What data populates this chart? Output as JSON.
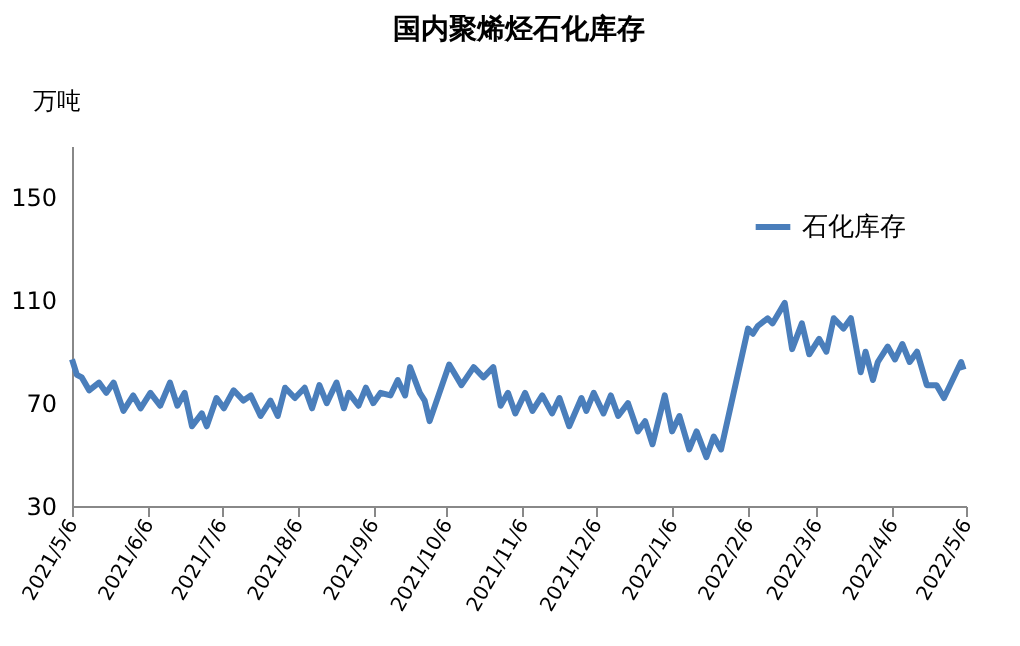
{
  "chart_data": {
    "type": "line",
    "title": "国内聚烯烃石化库存",
    "ylabel": "万吨",
    "xlim": [
      "2021-05-06",
      "2022-05-06"
    ],
    "ylim": [
      30,
      170
    ],
    "yticks": [
      30,
      70,
      110,
      150
    ],
    "xticks": [
      {
        "value": "2021-05-06",
        "label": "2021/5/6"
      },
      {
        "value": "2021-06-06",
        "label": "2021/6/6"
      },
      {
        "value": "2021-07-06",
        "label": "2021/7/6"
      },
      {
        "value": "2021-08-06",
        "label": "2021/8/6"
      },
      {
        "value": "2021-09-06",
        "label": "2021/9/6"
      },
      {
        "value": "2021-10-06",
        "label": "2021/10/6"
      },
      {
        "value": "2021-11-06",
        "label": "2021/11/6"
      },
      {
        "value": "2021-12-06",
        "label": "2021/12/6"
      },
      {
        "value": "2022-01-06",
        "label": "2022/1/6"
      },
      {
        "value": "2022-02-06",
        "label": "2022/2/6"
      },
      {
        "value": "2022-03-06",
        "label": "2022/3/6"
      },
      {
        "value": "2022-04-06",
        "label": "2022/4/6"
      },
      {
        "value": "2022-05-06",
        "label": "2022/5/6"
      }
    ],
    "grid": false,
    "legend": "top right",
    "marker": "none",
    "line_style": "solid",
    "x": [
      "2021-05-06",
      "2021-05-08",
      "2021-05-10",
      "2021-05-13",
      "2021-05-17",
      "2021-05-20",
      "2021-05-23",
      "2021-05-27",
      "2021-05-31",
      "2021-06-03",
      "2021-06-07",
      "2021-06-11",
      "2021-06-15",
      "2021-06-18",
      "2021-06-21",
      "2021-06-24",
      "2021-06-28",
      "2021-06-30",
      "2021-07-04",
      "2021-07-07",
      "2021-07-11",
      "2021-07-15",
      "2021-07-18",
      "2021-07-22",
      "2021-07-26",
      "2021-07-29",
      "2021-08-01",
      "2021-08-05",
      "2021-08-09",
      "2021-08-12",
      "2021-08-15",
      "2021-08-18",
      "2021-08-22",
      "2021-08-25",
      "2021-08-27",
      "2021-08-31",
      "2021-09-03",
      "2021-09-06",
      "2021-09-09",
      "2021-09-13",
      "2021-09-16",
      "2021-09-19",
      "2021-09-21",
      "2021-09-25",
      "2021-09-27",
      "2021-09-29",
      "2021-10-07",
      "2021-10-12",
      "2021-10-17",
      "2021-10-21",
      "2021-10-25",
      "2021-10-28",
      "2021-10-31",
      "2021-11-03",
      "2021-11-07",
      "2021-11-10",
      "2021-11-14",
      "2021-11-18",
      "2021-11-21",
      "2021-11-25",
      "2021-11-30",
      "2021-12-02",
      "2021-12-05",
      "2021-12-09",
      "2021-12-12",
      "2021-12-15",
      "2021-12-19",
      "2021-12-23",
      "2021-12-26",
      "2021-12-29",
      "2022-01-03",
      "2022-01-06",
      "2022-01-09",
      "2022-01-13",
      "2022-01-16",
      "2022-01-20",
      "2022-01-23",
      "2022-01-26",
      "2022-02-06",
      "2022-02-08",
      "2022-02-10",
      "2022-02-14",
      "2022-02-16",
      "2022-02-21",
      "2022-02-24",
      "2022-02-28",
      "2022-03-03",
      "2022-03-07",
      "2022-03-10",
      "2022-03-13",
      "2022-03-17",
      "2022-03-20",
      "2022-03-24",
      "2022-03-26",
      "2022-03-29",
      "2022-03-31",
      "2022-04-04",
      "2022-04-07",
      "2022-04-10",
      "2022-04-13",
      "2022-04-16",
      "2022-04-20",
      "2022-04-24",
      "2022-04-27",
      "2022-05-04",
      "2022-05-05"
    ],
    "series": [
      {
        "name": "石化库存",
        "color": "#4a7ebb",
        "values": [
          87,
          81,
          80,
          75,
          78,
          74,
          78,
          67,
          73,
          68,
          74,
          69,
          78,
          69,
          74,
          61,
          66,
          61,
          72,
          68,
          75,
          71,
          73,
          65,
          71,
          65,
          76,
          72,
          76,
          68,
          77,
          70,
          78,
          68,
          74,
          69,
          76,
          70,
          74,
          73,
          79,
          73,
          84,
          74,
          71,
          63,
          85,
          77,
          84,
          80,
          84,
          69,
          74,
          66,
          74,
          67,
          73,
          66,
          72,
          61,
          72,
          67,
          74,
          66,
          73,
          65,
          70,
          59,
          63,
          54,
          73,
          59,
          65,
          52,
          59,
          49,
          57,
          52,
          99,
          97,
          100,
          103,
          101,
          109,
          91,
          101,
          89,
          95,
          90,
          103,
          99,
          103,
          82,
          90,
          79,
          86,
          92,
          87,
          93,
          86,
          90,
          77,
          77,
          72,
          86,
          83
        ]
      }
    ]
  }
}
